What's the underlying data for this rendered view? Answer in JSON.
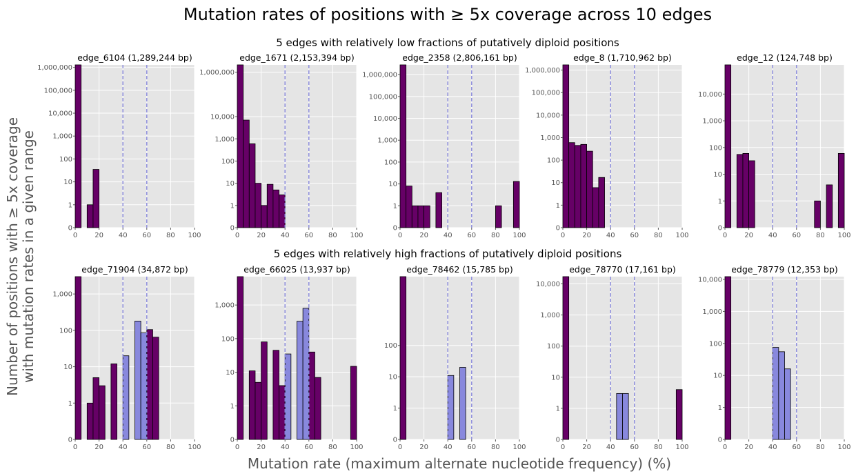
{
  "figure": {
    "title": "Mutation rates of positions with ≥ 5x coverage across 10 edges",
    "xlabel": "Mutation rate (maximum alternate nucleotide frequency) (%)",
    "ylabel_line1": "Number of positions with ≥ 5x coverage",
    "ylabel_line2": "with mutation rates in a given range",
    "row1_title": "5 edges with relatively low fractions of putatively diploid positions",
    "row2_title": "5 edges with relatively high fractions of putatively diploid positions"
  },
  "colors": {
    "bar": "#660066",
    "diploid_bar": "#8888dd",
    "vline": "#8888dd",
    "axes_bg": "#e5e5e5",
    "grid": "#ffffff"
  },
  "chart_data": [
    {
      "type": "bar",
      "title": "edge_6104 (1,289,244 bp)",
      "xlim": [
        0,
        100
      ],
      "yscale": "symlog",
      "xticks": [
        0,
        20,
        40,
        60,
        80,
        100
      ],
      "yticks": [
        0,
        1,
        10,
        100,
        1000,
        10000,
        100000,
        1000000
      ],
      "ytick_labels": [
        "0",
        "1",
        "10",
        "100",
        "1,000",
        "10,000",
        "100,000",
        "1,000,000"
      ],
      "bin_width": 5,
      "vlines": [
        40,
        60
      ],
      "bins": [
        {
          "x": 0,
          "y": 1289000
        },
        {
          "x": 10,
          "y": 1
        },
        {
          "x": 15,
          "y": 35
        }
      ]
    },
    {
      "type": "bar",
      "title": "edge_1671 (2,153,394 bp)",
      "xlim": [
        0,
        100
      ],
      "yscale": "symlog",
      "xticks": [
        0,
        20,
        40,
        60,
        80,
        100
      ],
      "yticks": [
        0,
        1,
        10,
        100,
        1000,
        10000,
        1000000
      ],
      "ytick_labels": [
        "0",
        "1",
        "10",
        "100",
        "1,000",
        "10,000",
        "1,000,000"
      ],
      "bin_width": 5,
      "vlines": [
        40,
        60
      ],
      "bins": [
        {
          "x": 0,
          "y": 2150000
        },
        {
          "x": 5,
          "y": 7000
        },
        {
          "x": 10,
          "y": 600
        },
        {
          "x": 15,
          "y": 10
        },
        {
          "x": 20,
          "y": 1
        },
        {
          "x": 25,
          "y": 9
        },
        {
          "x": 30,
          "y": 5
        },
        {
          "x": 35,
          "y": 3
        }
      ]
    },
    {
      "type": "bar",
      "title": "edge_2358 (2,806,161 bp)",
      "xlim": [
        0,
        100
      ],
      "yscale": "symlog",
      "xticks": [
        0,
        20,
        40,
        60,
        80,
        100
      ],
      "yticks": [
        0,
        1,
        10,
        100,
        1000,
        10000,
        100000,
        1000000
      ],
      "ytick_labels": [
        "0",
        "1",
        "10",
        "100",
        "1,000",
        "10,000",
        "100,000",
        "1,000,000"
      ],
      "bin_width": 5,
      "vlines": [
        40,
        60
      ],
      "bins": [
        {
          "x": 0,
          "y": 2800000
        },
        {
          "x": 5,
          "y": 8
        },
        {
          "x": 10,
          "y": 1
        },
        {
          "x": 15,
          "y": 1
        },
        {
          "x": 20,
          "y": 1
        },
        {
          "x": 30,
          "y": 4
        },
        {
          "x": 80,
          "y": 1
        },
        {
          "x": 95,
          "y": 13
        }
      ]
    },
    {
      "type": "bar",
      "title": "edge_8 (1,710,962 bp)",
      "xlim": [
        0,
        100
      ],
      "yscale": "symlog",
      "xticks": [
        0,
        20,
        40,
        60,
        80,
        100
      ],
      "yticks": [
        0,
        1,
        10,
        100,
        1000,
        10000,
        100000,
        1000000
      ],
      "ytick_labels": [
        "0",
        "1",
        "10",
        "100",
        "1,000",
        "10,000",
        "100,000",
        "1,000,000"
      ],
      "bin_width": 5,
      "vlines": [
        40,
        60
      ],
      "bins": [
        {
          "x": 0,
          "y": 1710000
        },
        {
          "x": 5,
          "y": 600
        },
        {
          "x": 10,
          "y": 450
        },
        {
          "x": 15,
          "y": 500
        },
        {
          "x": 20,
          "y": 250
        },
        {
          "x": 25,
          "y": 6
        },
        {
          "x": 30,
          "y": 17
        }
      ]
    },
    {
      "type": "bar",
      "title": "edge_12 (124,748 bp)",
      "xlim": [
        0,
        100
      ],
      "yscale": "symlog",
      "xticks": [
        0,
        20,
        40,
        60,
        80,
        100
      ],
      "yticks": [
        0,
        1,
        10,
        100,
        1000,
        10000
      ],
      "ytick_labels": [
        "0",
        "1",
        "10",
        "100",
        "1,000",
        "10,000"
      ],
      "bin_width": 5,
      "vlines": [
        40,
        60
      ],
      "bins": [
        {
          "x": 0,
          "y": 124000
        },
        {
          "x": 10,
          "y": 55
        },
        {
          "x": 15,
          "y": 60
        },
        {
          "x": 20,
          "y": 32
        },
        {
          "x": 75,
          "y": 1
        },
        {
          "x": 85,
          "y": 4
        },
        {
          "x": 95,
          "y": 60
        }
      ]
    },
    {
      "type": "bar",
      "title": "edge_71904 (34,872 bp)",
      "xlim": [
        0,
        100
      ],
      "yscale": "symlog",
      "xticks": [
        0,
        20,
        40,
        60,
        80,
        100
      ],
      "yticks": [
        0,
        1,
        10,
        100,
        1000
      ],
      "ytick_labels": [
        "0",
        "1",
        "10",
        "100",
        "1,000"
      ],
      "bin_width": 5,
      "vlines": [
        40,
        60
      ],
      "bins": [
        {
          "x": 0,
          "y": 3000
        },
        {
          "x": 10,
          "y": 1
        },
        {
          "x": 15,
          "y": 5
        },
        {
          "x": 20,
          "y": 3
        },
        {
          "x": 30,
          "y": 12
        },
        {
          "x": 40,
          "y": 20,
          "diploid": true
        },
        {
          "x": 50,
          "y": 180,
          "diploid": true
        },
        {
          "x": 55,
          "y": 85,
          "diploid": true
        },
        {
          "x": 60,
          "y": 105
        },
        {
          "x": 65,
          "y": 65
        }
      ]
    },
    {
      "type": "bar",
      "title": "edge_66025 (13,937 bp)",
      "xlim": [
        0,
        100
      ],
      "yscale": "symlog",
      "xticks": [
        0,
        20,
        40,
        60,
        80,
        100
      ],
      "yticks": [
        0,
        1,
        10,
        100,
        1000
      ],
      "ytick_labels": [
        "0",
        "1",
        "10",
        "100",
        "1,000"
      ],
      "bin_width": 5,
      "vlines": [
        40,
        60
      ],
      "bins": [
        {
          "x": 0,
          "y": 7000
        },
        {
          "x": 10,
          "y": 11
        },
        {
          "x": 15,
          "y": 5
        },
        {
          "x": 20,
          "y": 80
        },
        {
          "x": 30,
          "y": 45
        },
        {
          "x": 35,
          "y": 4
        },
        {
          "x": 40,
          "y": 35,
          "diploid": true
        },
        {
          "x": 50,
          "y": 330,
          "diploid": true
        },
        {
          "x": 55,
          "y": 800,
          "diploid": true
        },
        {
          "x": 60,
          "y": 40
        },
        {
          "x": 65,
          "y": 7
        },
        {
          "x": 95,
          "y": 15
        }
      ]
    },
    {
      "type": "bar",
      "title": "edge_78462 (15,785 bp)",
      "xlim": [
        0,
        100
      ],
      "yscale": "symlog",
      "xticks": [
        0,
        20,
        40,
        60,
        80,
        100
      ],
      "yticks": [
        0,
        1,
        10,
        100
      ],
      "ytick_labels": [
        "0",
        "1",
        "10",
        "100"
      ],
      "bin_width": 5,
      "vlines": [
        40,
        60
      ],
      "bins": [
        {
          "x": 0,
          "y": 15700
        },
        {
          "x": 40,
          "y": 11,
          "diploid": true
        },
        {
          "x": 50,
          "y": 20,
          "diploid": true
        }
      ]
    },
    {
      "type": "bar",
      "title": "edge_78770 (17,161 bp)",
      "xlim": [
        0,
        100
      ],
      "yscale": "symlog",
      "xticks": [
        0,
        20,
        40,
        60,
        80,
        100
      ],
      "yticks": [
        0,
        1,
        10,
        100,
        1000,
        10000
      ],
      "ytick_labels": [
        "0",
        "1",
        "10",
        "100",
        "1,000",
        "10,000"
      ],
      "bin_width": 5,
      "vlines": [
        40,
        60
      ],
      "bins": [
        {
          "x": 0,
          "y": 17100
        },
        {
          "x": 45,
          "y": 3,
          "diploid": true
        },
        {
          "x": 50,
          "y": 3,
          "diploid": true
        },
        {
          "x": 95,
          "y": 4
        }
      ]
    },
    {
      "type": "bar",
      "title": "edge_78779 (12,353 bp)",
      "xlim": [
        0,
        100
      ],
      "yscale": "symlog",
      "xticks": [
        0,
        20,
        40,
        60,
        80,
        100
      ],
      "yticks": [
        0,
        1,
        10,
        100,
        1000,
        10000
      ],
      "ytick_labels": [
        "0",
        "1",
        "10",
        "100",
        "1,000",
        "10,000"
      ],
      "bin_width": 5,
      "vlines": [
        40,
        60
      ],
      "bins": [
        {
          "x": 0,
          "y": 12200
        },
        {
          "x": 40,
          "y": 75,
          "diploid": true
        },
        {
          "x": 45,
          "y": 55,
          "diploid": true
        },
        {
          "x": 50,
          "y": 16,
          "diploid": true
        }
      ]
    }
  ]
}
